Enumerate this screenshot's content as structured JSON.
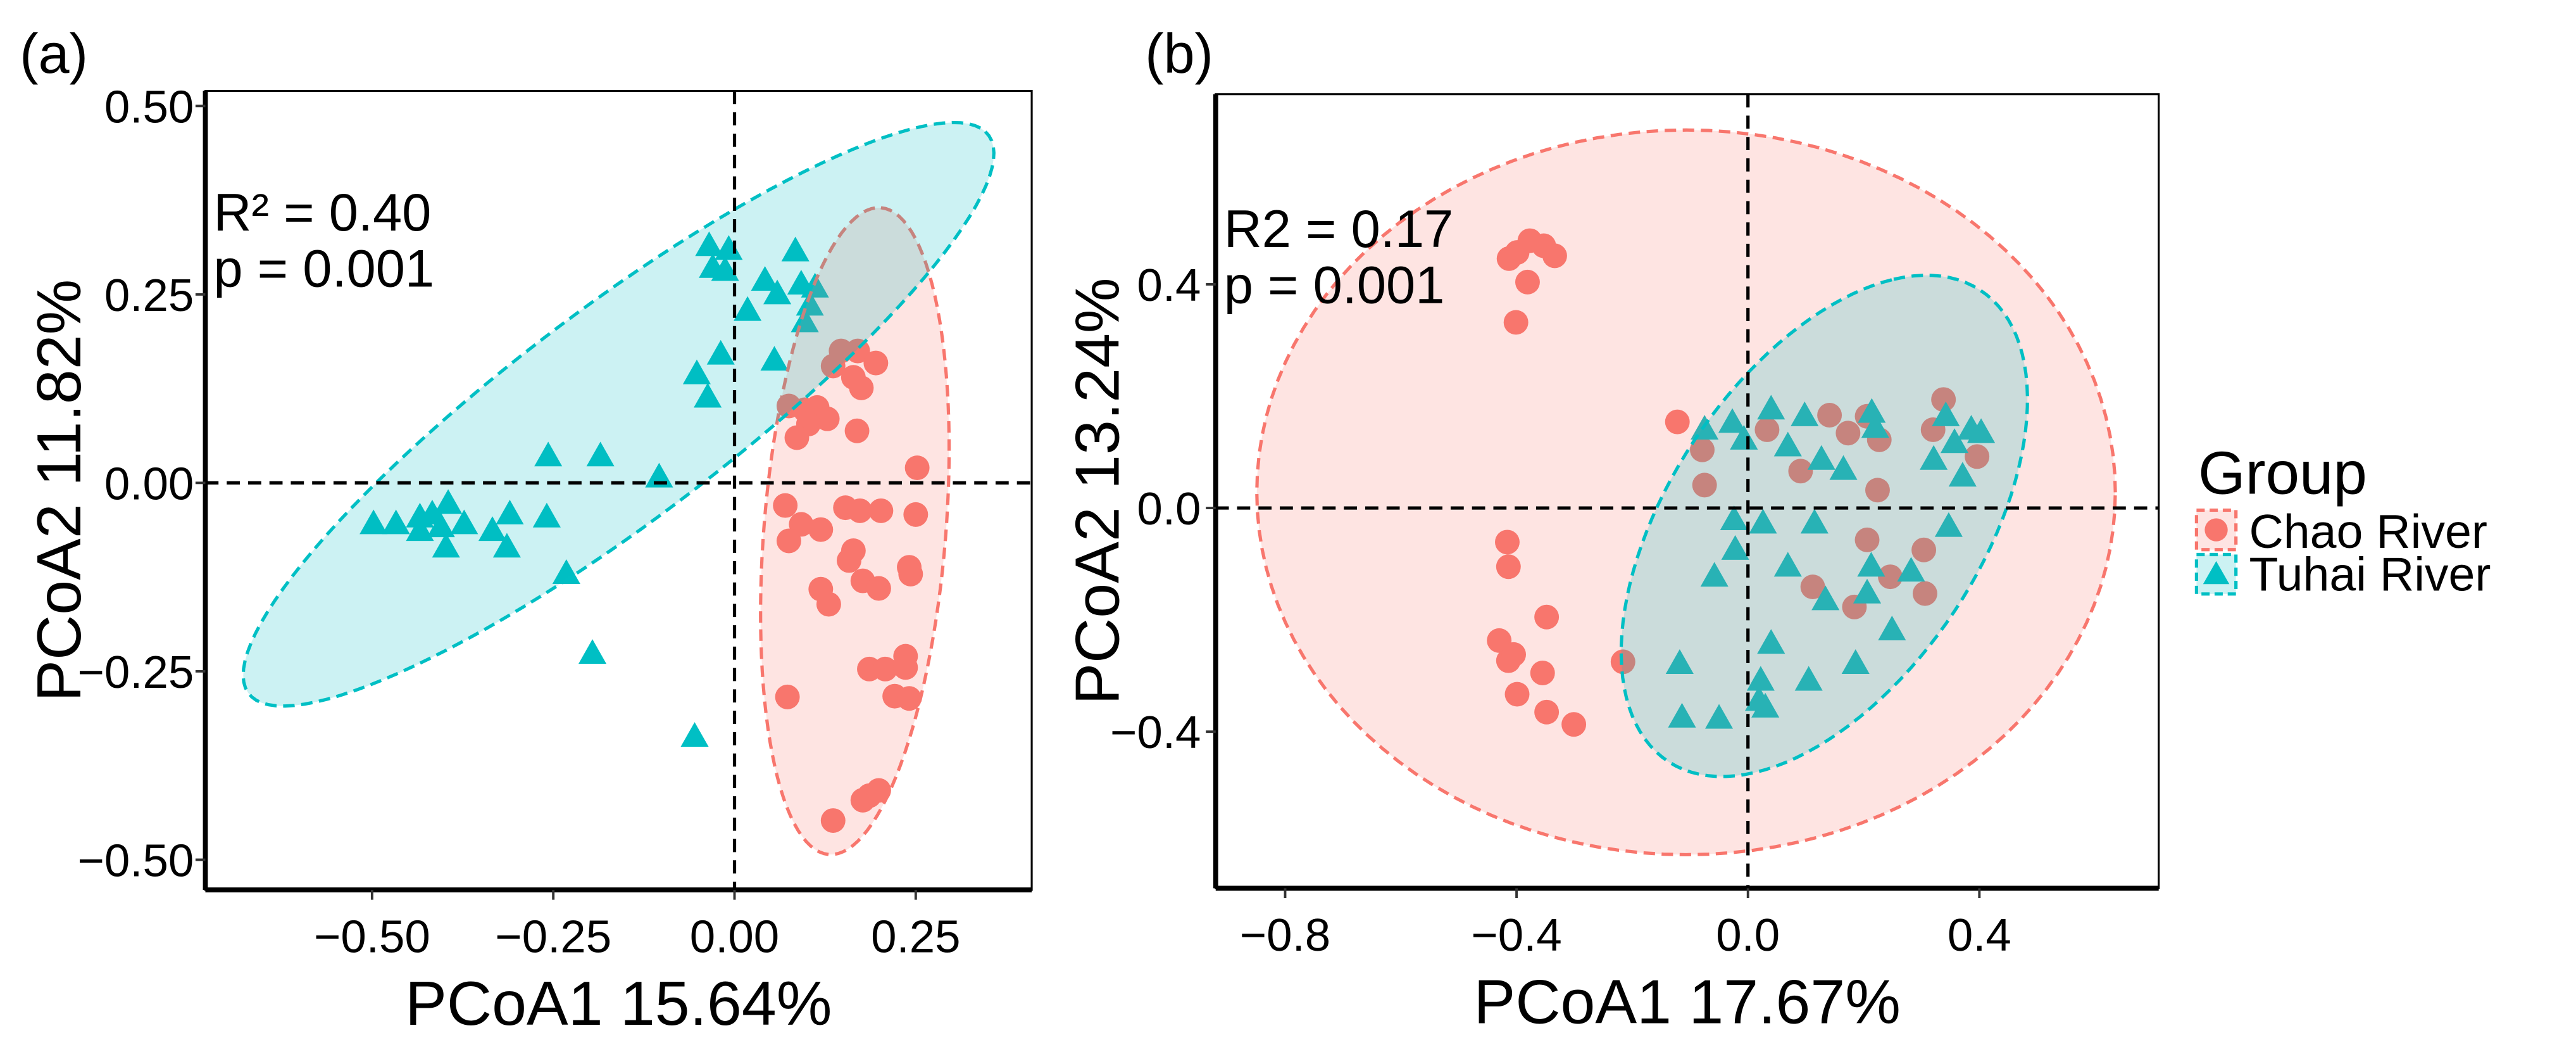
{
  "colors": {
    "chao": "#F8766D",
    "tuhai": "#00BFC4"
  },
  "legend": {
    "title": "Group",
    "items": [
      "Chao River",
      "Tuhai River"
    ]
  },
  "chart_data": [
    {
      "type": "scatter",
      "panel_label": "(a)",
      "xlabel": "PCoA1 15.64%",
      "ylabel": "PCoA2 11.82%",
      "xlim": [
        -0.73,
        0.41
      ],
      "ylim": [
        -0.54,
        0.52
      ],
      "xticks": [
        -0.5,
        -0.25,
        0,
        0.25
      ],
      "xtick_labels": [
        "−0.50",
        "−0.25",
        "0.00",
        "0.25"
      ],
      "yticks": [
        -0.5,
        -0.25,
        0,
        0.25,
        0.5
      ],
      "ytick_labels": [
        "−0.50",
        "−0.25",
        "0.00",
        "0.25",
        "0.50"
      ],
      "annotation": [
        "R² = 0.40",
        "p = 0.001"
      ],
      "reference_lines": {
        "x": 0,
        "y": 0
      },
      "series": [
        {
          "name": "Chao River",
          "marker": "circle",
          "points": [
            [
              0.147,
              0.175
            ],
            [
              0.17,
              0.175
            ],
            [
              0.195,
              0.159
            ],
            [
              0.136,
              0.155
            ],
            [
              0.164,
              0.14
            ],
            [
              0.175,
              0.126
            ],
            [
              0.075,
              0.102
            ],
            [
              0.097,
              0.097
            ],
            [
              0.114,
              0.1
            ],
            [
              0.128,
              0.085
            ],
            [
              0.102,
              0.078
            ],
            [
              0.086,
              0.06
            ],
            [
              0.169,
              0.069
            ],
            [
              0.252,
              0.02
            ],
            [
              0.07,
              -0.03
            ],
            [
              0.092,
              -0.055
            ],
            [
              0.119,
              -0.062
            ],
            [
              0.075,
              -0.077
            ],
            [
              0.153,
              -0.033
            ],
            [
              0.173,
              -0.037
            ],
            [
              0.202,
              -0.037
            ],
            [
              0.25,
              -0.042
            ],
            [
              0.164,
              -0.09
            ],
            [
              0.158,
              -0.103
            ],
            [
              0.177,
              -0.13
            ],
            [
              0.199,
              -0.14
            ],
            [
              0.119,
              -0.141
            ],
            [
              0.13,
              -0.161
            ],
            [
              0.241,
              -0.112
            ],
            [
              0.243,
              -0.121
            ],
            [
              0.186,
              -0.247
            ],
            [
              0.208,
              -0.247
            ],
            [
              0.236,
              -0.23
            ],
            [
              0.236,
              -0.245
            ],
            [
              0.073,
              -0.284
            ],
            [
              0.221,
              -0.283
            ],
            [
              0.241,
              -0.286
            ],
            [
              0.177,
              -0.421
            ],
            [
              0.186,
              -0.415
            ],
            [
              0.199,
              -0.408
            ],
            [
              0.136,
              -0.448
            ]
          ],
          "ellipse": {
            "center": [
              0.166,
              -0.064
            ],
            "a": [
              0.036,
              0.429
            ],
            "b": [
              0.125,
              -0.01
            ]
          }
        },
        {
          "name": "Tuhai River",
          "marker": "triangle",
          "points": [
            [
              -0.035,
              0.314
            ],
            [
              -0.008,
              0.309
            ],
            [
              -0.03,
              0.285
            ],
            [
              -0.013,
              0.281
            ],
            [
              0.084,
              0.307
            ],
            [
              0.042,
              0.268
            ],
            [
              0.059,
              0.25
            ],
            [
              0.092,
              0.263
            ],
            [
              0.111,
              0.259
            ],
            [
              0.104,
              0.235
            ],
            [
              0.097,
              0.213
            ],
            [
              0.018,
              0.228
            ],
            [
              -0.019,
              0.17
            ],
            [
              0.055,
              0.162
            ],
            [
              -0.052,
              0.144
            ],
            [
              -0.037,
              0.113
            ],
            [
              -0.257,
              0.035
            ],
            [
              -0.185,
              0.035
            ],
            [
              -0.104,
              0.007
            ],
            [
              -0.498,
              -0.055
            ],
            [
              -0.467,
              -0.055
            ],
            [
              -0.434,
              -0.064
            ],
            [
              -0.417,
              -0.042
            ],
            [
              -0.395,
              -0.028
            ],
            [
              -0.405,
              -0.059
            ],
            [
              -0.398,
              -0.086
            ],
            [
              -0.373,
              -0.055
            ],
            [
              -0.334,
              -0.064
            ],
            [
              -0.31,
              -0.042
            ],
            [
              -0.314,
              -0.086
            ],
            [
              -0.259,
              -0.046
            ],
            [
              -0.232,
              -0.121
            ],
            [
              -0.434,
              -0.046
            ],
            [
              -0.196,
              -0.227
            ],
            [
              -0.055,
              -0.337
            ]
          ],
          "ellipse": {
            "center": [
              -0.16,
              0.091
            ],
            "a": [
              0.506,
              0.375
            ],
            "b": [
              0.11,
              -0.096
            ]
          }
        }
      ]
    },
    {
      "type": "scatter",
      "panel_label": "(b)",
      "xlabel": "PCoA1 17.67%",
      "ylabel": "PCoA2 13.24%",
      "xlim": [
        -0.92,
        0.71
      ],
      "ylim": [
        -0.68,
        0.74
      ],
      "xticks": [
        -0.8,
        -0.4,
        0,
        0.4
      ],
      "xtick_labels": [
        "−0.8",
        "−0.4",
        "0.0",
        "0.4"
      ],
      "yticks": [
        -0.4,
        0,
        0.4
      ],
      "ytick_labels": [
        "−0.4",
        "0.0",
        "0.4"
      ],
      "annotation": [
        "R2 = 0.17",
        "p = 0.001"
      ],
      "reference_lines": {
        "x": 0,
        "y": 0
      },
      "series": [
        {
          "name": "Chao River",
          "marker": "circle",
          "points": [
            [
              -0.399,
              0.457
            ],
            [
              -0.377,
              0.478
            ],
            [
              -0.353,
              0.469
            ],
            [
              -0.334,
              0.451
            ],
            [
              -0.413,
              0.446
            ],
            [
              -0.381,
              0.404
            ],
            [
              -0.401,
              0.332
            ],
            [
              -0.122,
              0.154
            ],
            [
              -0.079,
              0.104
            ],
            [
              -0.075,
              0.041
            ],
            [
              0.033,
              0.14
            ],
            [
              0.141,
              0.166
            ],
            [
              0.173,
              0.134
            ],
            [
              0.227,
              0.122
            ],
            [
              0.206,
              0.164
            ],
            [
              0.091,
              0.066
            ],
            [
              0.224,
              0.032
            ],
            [
              0.338,
              0.194
            ],
            [
              0.32,
              0.14
            ],
            [
              0.396,
              0.092
            ],
            [
              0.206,
              -0.057
            ],
            [
              0.304,
              -0.075
            ],
            [
              0.112,
              -0.141
            ],
            [
              0.184,
              -0.177
            ],
            [
              0.246,
              -0.123
            ],
            [
              0.306,
              -0.153
            ],
            [
              -0.416,
              -0.061
            ],
            [
              -0.414,
              -0.105
            ],
            [
              -0.348,
              -0.195
            ],
            [
              -0.43,
              -0.237
            ],
            [
              -0.414,
              -0.273
            ],
            [
              -0.405,
              -0.262
            ],
            [
              -0.355,
              -0.295
            ],
            [
              -0.399,
              -0.333
            ],
            [
              -0.348,
              -0.365
            ],
            [
              -0.301,
              -0.387
            ],
            [
              -0.216,
              -0.275
            ]
          ],
          "ellipse": {
            "center": [
              -0.107,
              0.028
            ],
            "a": [
              0.742,
              0
            ],
            "b": [
              0,
              0.648
            ]
          }
        },
        {
          "name": "Tuhai River",
          "marker": "triangle",
          "points": [
            [
              -0.075,
              0.14
            ],
            [
              -0.027,
              0.152
            ],
            [
              -0.007,
              0.122
            ],
            [
              0.04,
              0.176
            ],
            [
              0.098,
              0.164
            ],
            [
              0.069,
              0.11
            ],
            [
              0.127,
              0.086
            ],
            [
              0.165,
              0.068
            ],
            [
              0.214,
              0.17
            ],
            [
              0.22,
              0.143
            ],
            [
              0.342,
              0.164
            ],
            [
              0.386,
              0.14
            ],
            [
              0.403,
              0.134
            ],
            [
              0.357,
              0.116
            ],
            [
              0.321,
              0.086
            ],
            [
              0.371,
              0.056
            ],
            [
              -0.024,
              -0.022
            ],
            [
              0.026,
              -0.028
            ],
            [
              0.115,
              -0.028
            ],
            [
              0.347,
              -0.034
            ],
            [
              -0.022,
              -0.075
            ],
            [
              0.069,
              -0.105
            ],
            [
              -0.058,
              -0.123
            ],
            [
              0.213,
              -0.105
            ],
            [
              0.282,
              -0.114
            ],
            [
              0.134,
              -0.165
            ],
            [
              0.206,
              -0.153
            ],
            [
              0.249,
              -0.219
            ],
            [
              0.04,
              -0.243
            ],
            [
              -0.118,
              -0.279
            ],
            [
              0.022,
              -0.309
            ],
            [
              0.105,
              -0.309
            ],
            [
              0.186,
              -0.279
            ],
            [
              0.019,
              -0.345
            ],
            [
              0.03,
              -0.357
            ],
            [
              -0.114,
              -0.375
            ],
            [
              -0.05,
              -0.377
            ]
          ],
          "ellipse": {
            "center": [
              0.132,
              -0.032
            ],
            "a": [
              0.12,
              0.441
            ],
            "b": [
              0.33,
              0.08
            ]
          }
        }
      ]
    }
  ]
}
